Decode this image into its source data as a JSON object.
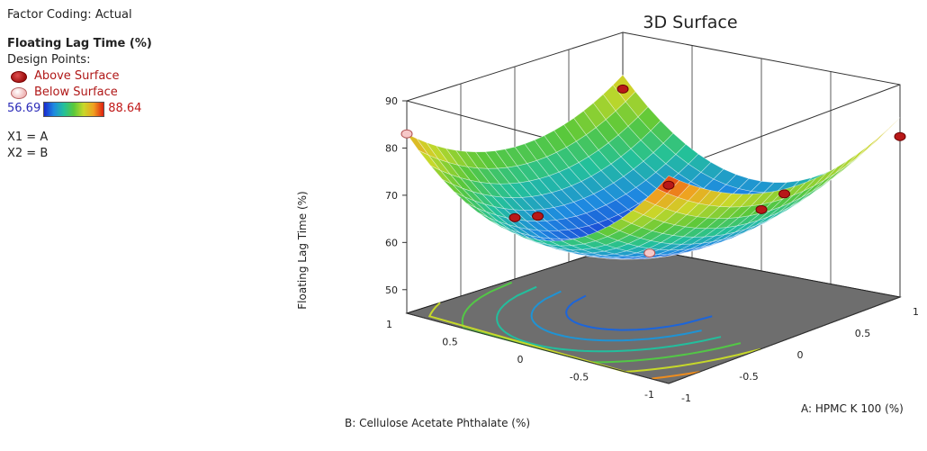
{
  "legend": {
    "factor_coding": "Factor Coding: Actual",
    "response": "Floating Lag Time (%)",
    "design_points_label": "Design Points:",
    "above_label": "Above Surface",
    "below_label": "Below Surface",
    "min_value": "56.69",
    "max_value": "88.64",
    "x1": "X1 = A",
    "x2": "X2 = B"
  },
  "chart_data": {
    "type": "surface",
    "title": "3D Surface",
    "zlabel": "Floating Lag Time (%)",
    "xlabel": "A: HPMC K 100 (%)",
    "ylabel": "B: Cellulose Acetate Phthalate (%)",
    "x_range": [
      -1,
      1
    ],
    "y_range": [
      -1,
      1
    ],
    "z_ticks": [
      50,
      60,
      70,
      80,
      90
    ],
    "a_ticks": [
      "-1",
      "-0.5",
      "0",
      "0.5",
      "1"
    ],
    "b_ticks": [
      "-1",
      "-0.5",
      "0",
      "0.5",
      "1"
    ],
    "color_range": [
      56.69,
      88.64
    ],
    "colors": {
      "low": "#1a2ad0",
      "mid": "#5ac83a",
      "high": "#e02010"
    },
    "design_points": [
      {
        "A": -1,
        "B": -1,
        "response": 87,
        "position": "above"
      },
      {
        "A": 1,
        "B": -1,
        "response": 79,
        "position": "above"
      },
      {
        "A": -1,
        "B": 1,
        "response": 83,
        "position": "below"
      },
      {
        "A": 1,
        "B": 1,
        "response": 78,
        "position": "above"
      },
      {
        "A": 0,
        "B": -1,
        "response": 76,
        "position": "above"
      },
      {
        "A": -1,
        "B": 0,
        "response": 73,
        "position": "above"
      },
      {
        "A": 1,
        "B": 0,
        "response": 58,
        "position": "above"
      },
      {
        "A": 0,
        "B": 1,
        "response": 58,
        "position": "above"
      },
      {
        "A": 0,
        "B": 0,
        "response": 57,
        "position": "below"
      }
    ]
  }
}
